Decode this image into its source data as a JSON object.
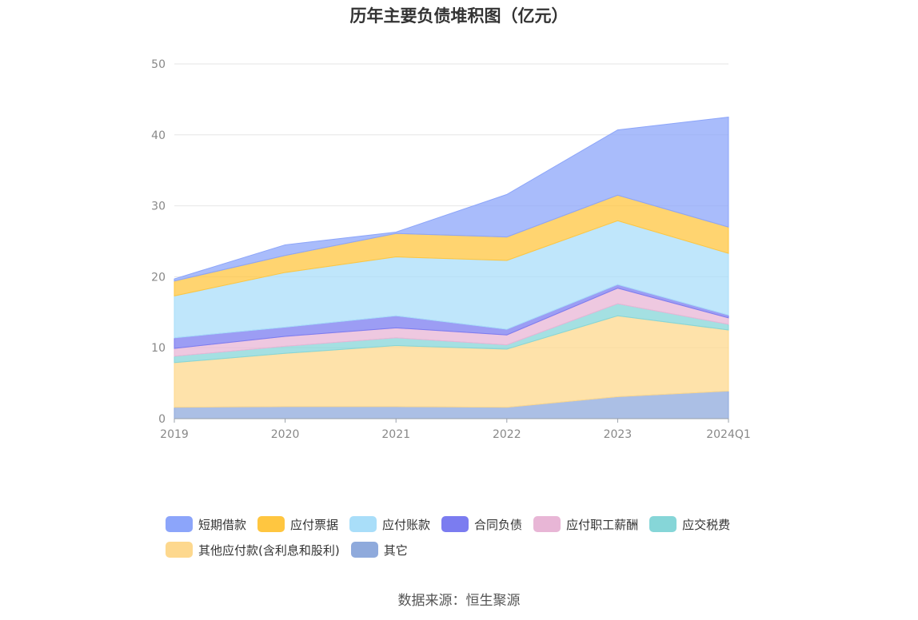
{
  "chart_data": {
    "type": "area",
    "stacked": true,
    "title": "历年主要负债堆积图（亿元）",
    "categories": [
      "2019",
      "2020",
      "2021",
      "2022",
      "2023",
      "2024Q1"
    ],
    "ylim": [
      0,
      50
    ],
    "yticks": [
      "0",
      "10",
      "20",
      "30",
      "40",
      "50"
    ],
    "grid": true,
    "legend_position": "bottom",
    "series": [
      {
        "name": "其它",
        "color": "#8FAADC",
        "values": [
          1.6,
          1.7,
          1.7,
          1.6,
          3.1,
          3.9
        ]
      },
      {
        "name": "其他应付款(含利息和股利)",
        "color": "#FDD88E",
        "values": [
          6.3,
          7.5,
          8.6,
          8.2,
          11.4,
          8.6
        ]
      },
      {
        "name": "应交税费",
        "color": "#86D6D8",
        "values": [
          0.9,
          1.0,
          1.1,
          0.6,
          1.7,
          0.8
        ]
      },
      {
        "name": "应付职工薪酬",
        "color": "#E8B6D6",
        "values": [
          1.1,
          1.4,
          1.4,
          1.4,
          2.2,
          0.9
        ]
      },
      {
        "name": "合同负债",
        "color": "#7B7CF0",
        "values": [
          1.5,
          1.3,
          1.7,
          0.8,
          0.5,
          0.4
        ]
      },
      {
        "name": "应付账款",
        "color": "#A9DEF9",
        "values": [
          5.9,
          7.7,
          8.3,
          9.7,
          9.0,
          8.7
        ]
      },
      {
        "name": "应付票据",
        "color": "#FFC640",
        "values": [
          2.1,
          2.4,
          3.3,
          3.3,
          3.6,
          3.7
        ]
      },
      {
        "name": "短期借款",
        "color": "#8CA5FA",
        "values": [
          0.3,
          1.5,
          0.2,
          6.0,
          9.2,
          15.5
        ]
      }
    ]
  },
  "legend": {
    "rows": [
      [
        {
          "label": "短期借款",
          "color": "#8CA5FA"
        },
        {
          "label": "应付票据",
          "color": "#FFC640"
        },
        {
          "label": "应付账款",
          "color": "#A9DEF9"
        },
        {
          "label": "合同负债",
          "color": "#7B7CF0"
        },
        {
          "label": "应付职工薪酬",
          "color": "#E8B6D6"
        },
        {
          "label": "应交税费",
          "color": "#86D6D8"
        }
      ],
      [
        {
          "label": "其他应付款(含利息和股利)",
          "color": "#FDD88E"
        },
        {
          "label": "其它",
          "color": "#8FAADC"
        }
      ]
    ]
  },
  "source": "数据来源：恒生聚源"
}
